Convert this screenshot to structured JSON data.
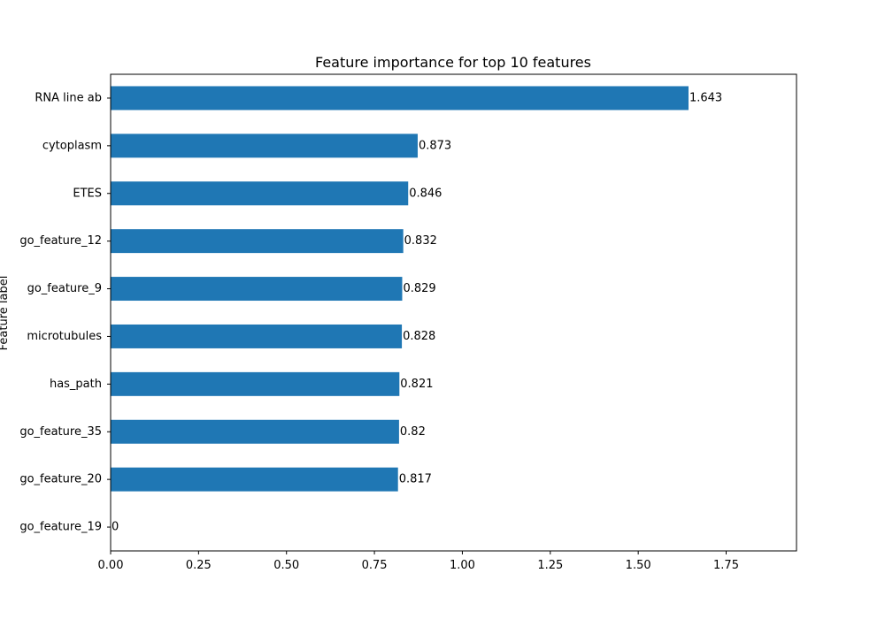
{
  "chart_data": {
    "type": "bar",
    "orientation": "horizontal",
    "title": "Feature importance for top 10 features",
    "xlabel": "",
    "ylabel": "Feature label",
    "categories": [
      "RNA line ab",
      "cytoplasm",
      "ETES",
      "go_feature_12",
      "go_feature_9",
      "microtubules",
      "has_path",
      "go_feature_35",
      "go_feature_20",
      "go_feature_19"
    ],
    "values": [
      1.643,
      0.873,
      0.846,
      0.832,
      0.829,
      0.828,
      0.821,
      0.82,
      0.817,
      0
    ],
    "value_labels": [
      "1.643",
      "0.873",
      "0.846",
      "0.832",
      "0.829",
      "0.828",
      "0.821",
      "0.82",
      "0.817",
      "0"
    ],
    "xlim": [
      0,
      1.95
    ],
    "xticks": [
      0.0,
      0.25,
      0.5,
      0.75,
      1.0,
      1.25,
      1.5,
      1.75
    ],
    "xtick_labels": [
      "0.00",
      "0.25",
      "0.50",
      "0.75",
      "1.00",
      "1.25",
      "1.50",
      "1.75"
    ],
    "bar_color": "#1f77b4",
    "grid": false,
    "legend": "none"
  }
}
